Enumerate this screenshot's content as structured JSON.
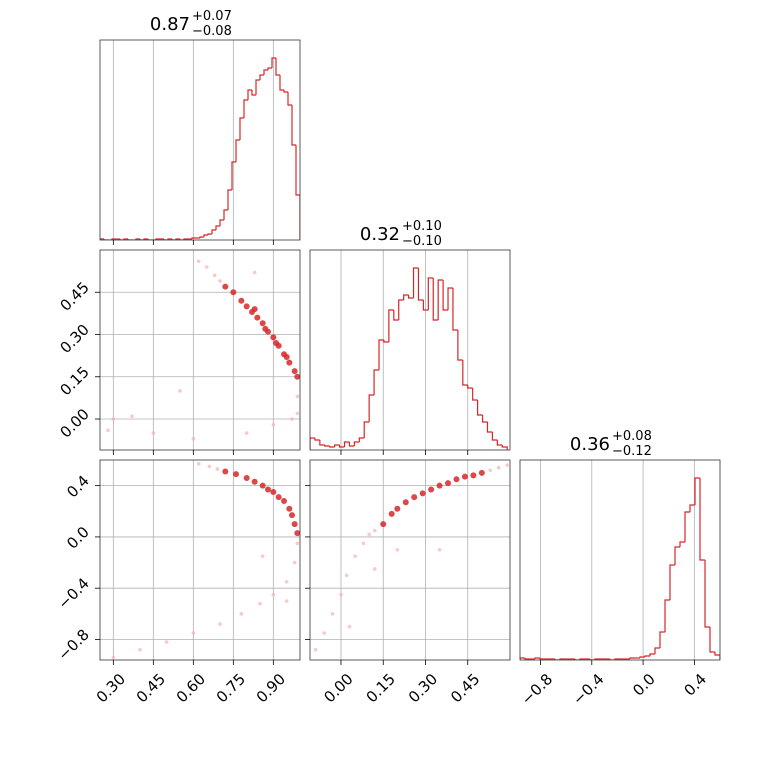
{
  "chart_data": [
    {
      "type": "histogram",
      "title": "0.87",
      "title_upper": "+0.07",
      "title_lower": "−0.08",
      "color": "#d62728",
      "grid": true,
      "xlim": [
        0.25,
        1.0
      ],
      "xticks": [
        0.3,
        0.45,
        0.6,
        0.75,
        0.9
      ],
      "xtick_labels": false,
      "ylim": [
        0,
        200
      ],
      "bins": [
        0.25,
        0.265,
        0.28,
        0.295,
        0.31,
        0.325,
        0.34,
        0.355,
        0.37,
        0.385,
        0.4,
        0.415,
        0.43,
        0.445,
        0.46,
        0.475,
        0.49,
        0.505,
        0.52,
        0.535,
        0.55,
        0.565,
        0.58,
        0.595,
        0.61,
        0.625,
        0.64,
        0.655,
        0.67,
        0.685,
        0.7,
        0.715,
        0.73,
        0.745,
        0.76,
        0.775,
        0.79,
        0.805,
        0.82,
        0.835,
        0.85,
        0.865,
        0.88,
        0.895,
        0.91,
        0.925,
        0.94,
        0.955,
        0.97,
        0.985,
        1.0
      ],
      "counts": [
        1,
        0,
        0,
        1,
        1,
        0,
        1,
        0,
        0,
        1,
        0,
        1,
        0,
        0,
        1,
        1,
        0,
        1,
        0,
        1,
        0,
        1,
        1,
        2,
        2,
        3,
        5,
        6,
        10,
        14,
        20,
        30,
        50,
        78,
        100,
        122,
        140,
        150,
        145,
        160,
        165,
        170,
        172,
        182,
        165,
        150,
        148,
        135,
        95,
        45
      ]
    },
    {
      "type": "scatter",
      "grid": true,
      "xlim": [
        0.25,
        1.0
      ],
      "xticks": [
        0.3,
        0.45,
        0.6,
        0.75,
        0.9
      ],
      "xtick_labels": false,
      "ylim": [
        -0.11,
        0.6
      ],
      "yticks": [
        {
          "value": 0,
          "label": "0.00"
        },
        0.15,
        {
          "value": 0.3,
          "label": "0.30"
        },
        0.45
      ],
      "ytick_labels": true,
      "series": [
        {
          "color": "#f4b3b3",
          "x": [
            0.62,
            0.65,
            0.68,
            0.7,
            0.99,
            0.99,
            0.97,
            0.9,
            0.8,
            0.6,
            0.3,
            0.37,
            0.45,
            0.55,
            0.83,
            0.28
          ],
          "y": [
            0.56,
            0.54,
            0.51,
            0.49,
            0.08,
            0.02,
            0.0,
            -0.02,
            -0.05,
            -0.07,
            0.0,
            0.01,
            -0.05,
            0.1,
            0.52,
            -0.04
          ]
        },
        {
          "color": "#d62728",
          "x": [
            0.72,
            0.75,
            0.78,
            0.8,
            0.82,
            0.84,
            0.86,
            0.88,
            0.9,
            0.92,
            0.94,
            0.96,
            0.98,
            0.99,
            0.83,
            0.87,
            0.91,
            0.95
          ],
          "y": [
            0.47,
            0.45,
            0.42,
            0.4,
            0.38,
            0.36,
            0.34,
            0.31,
            0.29,
            0.26,
            0.23,
            0.2,
            0.17,
            0.15,
            0.39,
            0.32,
            0.27,
            0.22
          ]
        }
      ]
    },
    {
      "type": "histogram",
      "title": "0.32",
      "title_upper": "+0.10",
      "title_lower": "−0.10",
      "color": "#d62728",
      "grid": true,
      "xlim": [
        -0.11,
        0.6
      ],
      "xticks": [
        0,
        0.15,
        0.3,
        0.45
      ],
      "xtick_labels": false,
      "ylim": [
        0,
        200
      ],
      "bins": [
        -0.11,
        -0.0925,
        -0.075,
        -0.0575,
        -0.04,
        -0.0225,
        -0.005,
        0.0125,
        0.03,
        0.0475,
        0.065,
        0.0825,
        0.1,
        0.1175,
        0.135,
        0.1525,
        0.17,
        0.1875,
        0.205,
        0.2225,
        0.24,
        0.2575,
        0.275,
        0.2925,
        0.31,
        0.3275,
        0.345,
        0.3625,
        0.38,
        0.3975,
        0.415,
        0.4325,
        0.45,
        0.4675,
        0.485,
        0.5025,
        0.52,
        0.5375,
        0.555,
        0.5725,
        0.59
      ],
      "counts": [
        12,
        10,
        5,
        4,
        3,
        5,
        3,
        8,
        4,
        8,
        12,
        28,
        55,
        80,
        110,
        108,
        140,
        130,
        150,
        155,
        152,
        182,
        150,
        140,
        172,
        130,
        170,
        140,
        162,
        120,
        90,
        65,
        62,
        50,
        35,
        28,
        18,
        10,
        5,
        3
      ]
    },
    {
      "type": "scatter",
      "grid": true,
      "xlim": [
        0.25,
        1.0
      ],
      "xticks": [
        {
          "value": 0.3,
          "label": "0.30"
        },
        0.45,
        {
          "value": 0.6,
          "label": "0.60"
        },
        0.75,
        {
          "value": 0.9,
          "label": "0.90"
        }
      ],
      "xtick_labels": true,
      "ylim": [
        -0.96,
        0.6
      ],
      "yticks": [
        {
          "value": -0.8,
          "label": "−0.8"
        },
        {
          "value": -0.4,
          "label": "−0.4"
        },
        {
          "value": 0,
          "label": "0.0"
        },
        0.4
      ],
      "ytick_labels": true,
      "series": [
        {
          "color": "#f4b3b3",
          "x": [
            0.62,
            0.66,
            0.69,
            0.99,
            0.98,
            0.95,
            0.9,
            0.85,
            0.78,
            0.7,
            0.6,
            0.5,
            0.4,
            0.3,
            0.86,
            0.95
          ],
          "y": [
            0.57,
            0.55,
            0.53,
            -0.05,
            -0.2,
            -0.35,
            -0.45,
            -0.52,
            -0.6,
            -0.68,
            -0.75,
            -0.82,
            -0.88,
            -0.94,
            -0.15,
            -0.5
          ]
        },
        {
          "color": "#d62728",
          "x": [
            0.72,
            0.76,
            0.8,
            0.83,
            0.86,
            0.88,
            0.9,
            0.92,
            0.94,
            0.96,
            0.97,
            0.98,
            0.99
          ],
          "y": [
            0.51,
            0.49,
            0.46,
            0.43,
            0.4,
            0.37,
            0.35,
            0.31,
            0.28,
            0.22,
            0.17,
            0.1,
            0.03
          ]
        }
      ]
    },
    {
      "type": "scatter",
      "grid": true,
      "xlim": [
        -0.11,
        0.6
      ],
      "xticks": [
        {
          "value": 0,
          "label": "0.00"
        },
        0.15,
        {
          "value": 0.3,
          "label": "0.30"
        },
        0.45
      ],
      "xtick_labels": true,
      "ylim": [
        -0.96,
        0.6
      ],
      "yticks": [
        -0.8,
        -0.4,
        0,
        0.4
      ],
      "ytick_labels": false,
      "series": [
        {
          "color": "#f4b3b3",
          "x": [
            0.1,
            0.12,
            0.53,
            0.56,
            0.59,
            0.08,
            0.05,
            0.02,
            0.0,
            -0.03,
            -0.06,
            -0.09,
            0.12,
            0.2,
            0.35,
            0.03
          ],
          "y": [
            0.02,
            0.05,
            0.52,
            0.54,
            0.56,
            -0.05,
            -0.15,
            -0.3,
            -0.45,
            -0.6,
            -0.75,
            -0.88,
            -0.25,
            -0.1,
            -0.1,
            -0.7
          ]
        },
        {
          "color": "#d62728",
          "x": [
            0.15,
            0.18,
            0.2,
            0.23,
            0.26,
            0.29,
            0.32,
            0.35,
            0.38,
            0.41,
            0.44,
            0.47,
            0.5
          ],
          "y": [
            0.1,
            0.18,
            0.22,
            0.27,
            0.31,
            0.34,
            0.37,
            0.4,
            0.42,
            0.45,
            0.47,
            0.48,
            0.5
          ]
        }
      ]
    },
    {
      "type": "histogram",
      "title": "0.36",
      "title_upper": "+0.08",
      "title_lower": "−0.12",
      "color": "#d62728",
      "grid": true,
      "xlim": [
        -0.96,
        0.6
      ],
      "xticks": [
        {
          "value": -0.8,
          "label": "−0.8"
        },
        {
          "value": -0.4,
          "label": "−0.4"
        },
        {
          "value": 0,
          "label": "0.0"
        },
        0.4
      ],
      "xtick_labels": true,
      "ylim": [
        0,
        200
      ],
      "bins": [
        -0.96,
        -0.921,
        -0.882,
        -0.843,
        -0.804,
        -0.765,
        -0.726,
        -0.687,
        -0.648,
        -0.609,
        -0.57,
        -0.531,
        -0.492,
        -0.453,
        -0.414,
        -0.375,
        -0.336,
        -0.297,
        -0.258,
        -0.219,
        -0.18,
        -0.141,
        -0.102,
        -0.063,
        -0.024,
        0.015,
        0.054,
        0.093,
        0.132,
        0.171,
        0.21,
        0.249,
        0.288,
        0.327,
        0.366,
        0.405,
        0.444,
        0.483,
        0.522,
        0.561,
        0.6
      ],
      "counts": [
        2,
        1,
        1,
        2,
        1,
        1,
        1,
        0,
        1,
        1,
        1,
        0,
        1,
        1,
        0,
        1,
        1,
        1,
        0,
        1,
        1,
        1,
        2,
        2,
        3,
        4,
        6,
        12,
        28,
        60,
        95,
        113,
        118,
        148,
        155,
        182,
        100,
        33,
        8,
        5
      ]
    }
  ]
}
